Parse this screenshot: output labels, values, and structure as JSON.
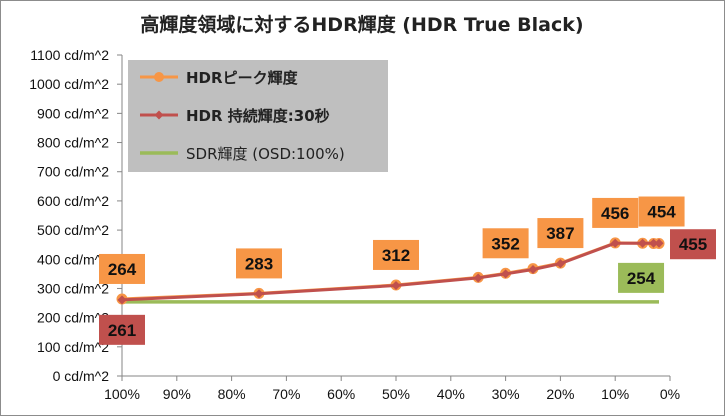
{
  "chart_data": {
    "type": "line",
    "title": "高輝度領域に対するHDR輝度 (HDR True Black)",
    "x_ticks": [
      "100%",
      "90%",
      "80%",
      "70%",
      "60%",
      "50%",
      "40%",
      "30%",
      "20%",
      "10%",
      "0%"
    ],
    "y_ticks": [
      "0 cd/m^2",
      "100 cd/m^2",
      "200 cd/m^2",
      "300 cd/m^2",
      "400 cd/m^2",
      "500 cd/m^2",
      "600 cd/m^2",
      "700 cd/m^2",
      "800 cd/m^2",
      "900 cd/m^2",
      "1000 cd/m^2",
      "1100 cd/m^2"
    ],
    "xlim": [
      100,
      0
    ],
    "ylim": [
      0,
      1100
    ],
    "grid": false,
    "legend_position": "top-left",
    "series": [
      {
        "name_bold": "HDR",
        "name_rest": "ピーク輝度",
        "color": "#f79646",
        "marker": "circle",
        "x": [
          100,
          75,
          50,
          35,
          30,
          25,
          20,
          10,
          5,
          3,
          2
        ],
        "y": [
          264,
          283,
          312,
          338,
          352,
          368,
          387,
          456,
          455,
          454,
          454
        ],
        "labels": [
          "264",
          "283",
          "312",
          "",
          "352",
          "",
          "387",
          "456",
          "",
          "454",
          ""
        ]
      },
      {
        "name_bold": "HDR",
        "name_rest": " 持続輝度:30秒",
        "color": "#c0504d",
        "marker": "diamond",
        "x": [
          100,
          75,
          50,
          35,
          30,
          25,
          20,
          10,
          5,
          3,
          2
        ],
        "y": [
          261,
          282,
          310,
          336,
          350,
          365,
          385,
          455,
          455,
          455,
          455
        ],
        "labels": [
          "261",
          "",
          "",
          "",
          "",
          "",
          "",
          "",
          "",
          "",
          "455"
        ]
      },
      {
        "name_bold": "",
        "name_rest": "SDR輝度 (OSD:100%)",
        "color": "#9bbb59",
        "marker": "none",
        "x": [
          100,
          2
        ],
        "y": [
          254,
          254
        ],
        "labels": [
          "",
          "254"
        ]
      }
    ]
  }
}
